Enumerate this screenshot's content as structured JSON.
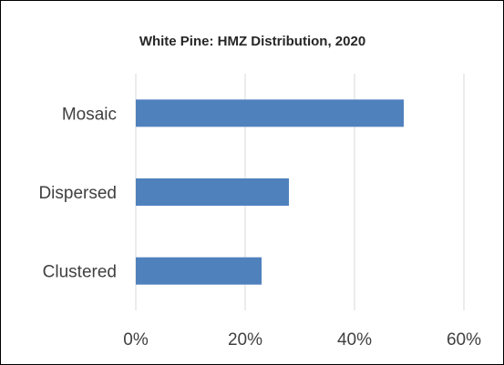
{
  "chart_data": {
    "type": "bar",
    "orientation": "horizontal",
    "title": "White Pine: HMZ Distribution, 2020",
    "categories": [
      "Mosaic",
      "Dispersed",
      "Clustered"
    ],
    "values": [
      49,
      28,
      23
    ],
    "xlim": [
      0,
      60
    ],
    "x_ticks": [
      0,
      20,
      40,
      60
    ],
    "x_tick_labels": [
      "0%",
      "20%",
      "40%",
      "60%"
    ],
    "xlabel": "",
    "ylabel": "",
    "grid": true,
    "legend": "none",
    "bar_color": "#4f81bd",
    "gridline_color": "#d9d9d9"
  }
}
